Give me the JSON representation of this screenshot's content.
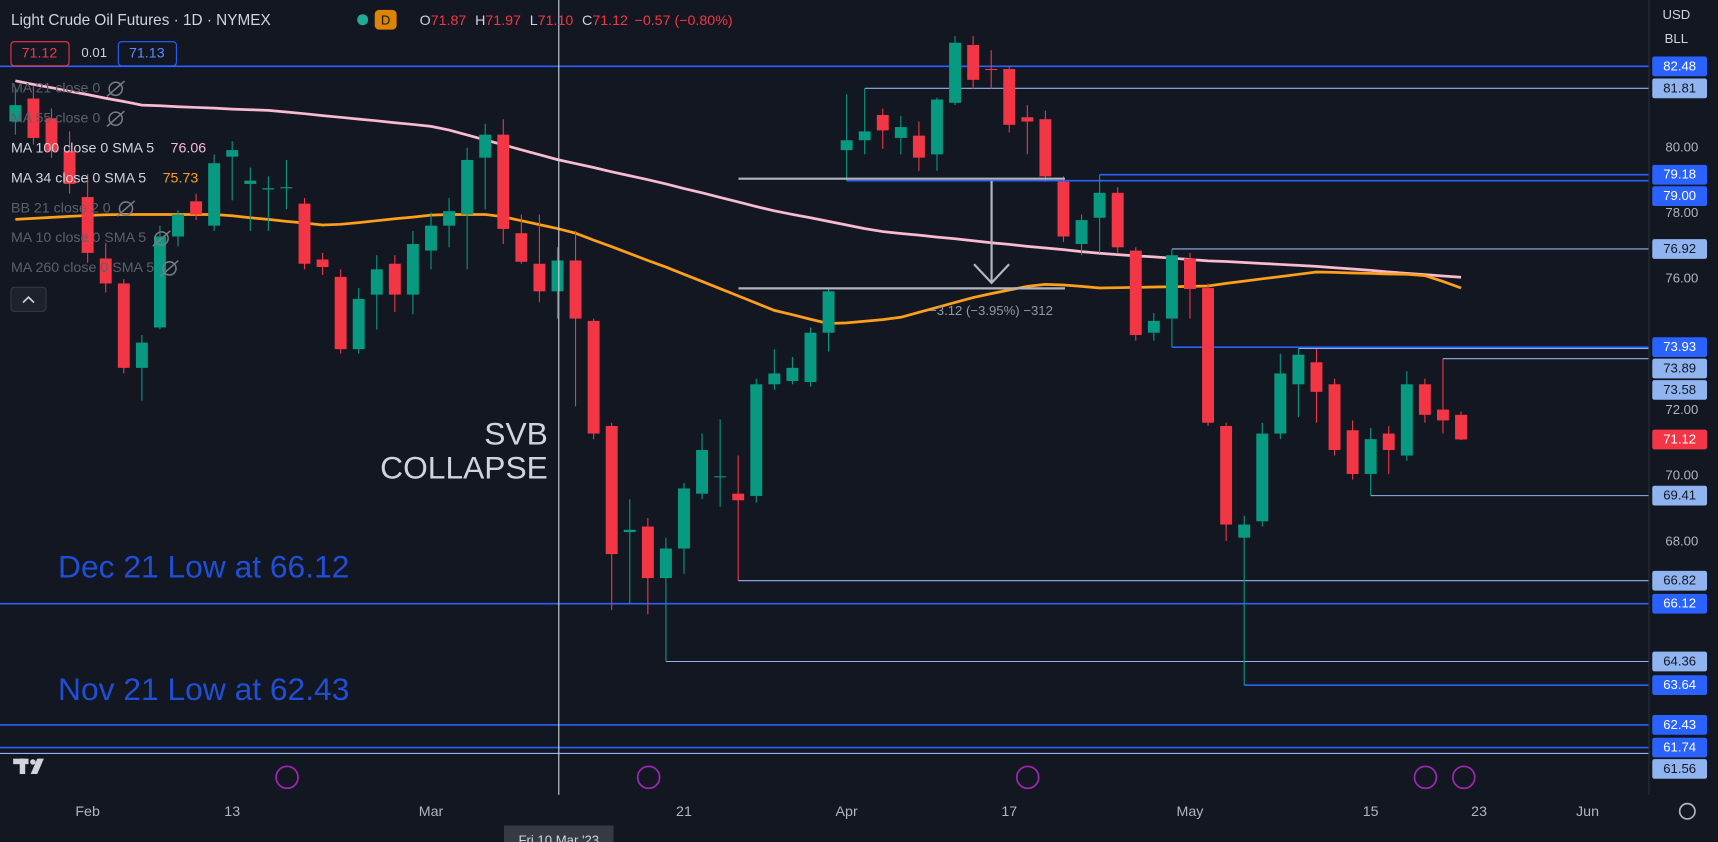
{
  "chart_data": {
    "type": "candlestick",
    "title": "Light Crude Oil Futures · 1D · NYMEX",
    "interval_badge": "D",
    "ohlc_header": [
      {
        "key": "O",
        "value": "71.87"
      },
      {
        "key": "H",
        "value": "71.97"
      },
      {
        "key": "L",
        "value": "71.10"
      },
      {
        "key": "C",
        "value": "71.12"
      }
    ],
    "change": "−0.57 (−0.80%)",
    "quote_boxes": [
      "71.12",
      "0.01",
      "71.13"
    ],
    "currency": "USD",
    "unit": "BLL",
    "up_color": "#089981",
    "down_color": "#f23645",
    "open": [
      80.8,
      81.5,
      80.9,
      79.9,
      78.5,
      76.63,
      75.87,
      73.3,
      74.53,
      77.3,
      78.37,
      77.63,
      79.73,
      78.9,
      78.73,
      78.77,
      78.3,
      76.6,
      76.07,
      73.87,
      75.53,
      76.47,
      75.53,
      76.87,
      77.63,
      77.97,
      79.7,
      80.4,
      77.4,
      76.47,
      75.63,
      76.57,
      74.73,
      71.53,
      68.3,
      68.47,
      66.9,
      67.8,
      69.47,
      69.97,
      69.47,
      69.4,
      72.8,
      72.9,
      72.87,
      74.37,
      79.93,
      80.23,
      81.0,
      80.3,
      80.37,
      79.8,
      81.37,
      83.13,
      82.4,
      82.4,
      80.93,
      80.87,
      78.97,
      77.07,
      77.87,
      78.63,
      76.87,
      74.37,
      74.8,
      76.63,
      75.73,
      71.53,
      68.13,
      68.63,
      71.3,
      72.8,
      73.47,
      72.8,
      71.4,
      70.07,
      71.3,
      70.63,
      72.8,
      72.03,
      71.87
    ],
    "high": [
      81.8,
      81.9,
      81.2,
      80.5,
      79.2,
      77.1,
      76.0,
      74.3,
      77.63,
      78.1,
      78.6,
      79.8,
      80.2,
      79.4,
      79.13,
      79.63,
      78.47,
      76.8,
      76.3,
      75.73,
      76.73,
      76.73,
      77.47,
      78.03,
      78.47,
      80.0,
      80.73,
      80.87,
      77.97,
      77.97,
      76.97,
      77.47,
      74.8,
      71.63,
      69.3,
      68.73,
      68.13,
      69.8,
      71.3,
      71.73,
      70.63,
      72.97,
      73.87,
      73.63,
      74.53,
      75.73,
      81.63,
      81.81,
      81.2,
      80.97,
      80.8,
      81.53,
      83.4,
      83.4,
      82.97,
      82.47,
      81.3,
      81.13,
      79.13,
      77.97,
      79.18,
      78.8,
      76.97,
      74.97,
      76.92,
      76.8,
      75.87,
      71.63,
      68.8,
      71.63,
      73.73,
      73.89,
      73.87,
      72.97,
      71.7,
      71.47,
      71.53,
      73.2,
      72.97,
      73.58,
      71.97
    ],
    "low": [
      80.4,
      80.1,
      79.7,
      78.6,
      76.5,
      75.6,
      73.13,
      72.3,
      74.47,
      77.0,
      77.8,
      77.47,
      78.4,
      77.47,
      77.47,
      78.13,
      76.3,
      76.13,
      73.73,
      73.73,
      74.47,
      75.0,
      74.93,
      76.3,
      76.97,
      76.3,
      78.13,
      77.07,
      76.47,
      75.3,
      74.8,
      72.13,
      71.13,
      65.93,
      66.13,
      65.8,
      64.36,
      67.03,
      69.3,
      69.07,
      66.82,
      69.2,
      72.63,
      72.8,
      72.73,
      73.8,
      79.0,
      79.8,
      79.97,
      79.8,
      79.3,
      79.3,
      81.3,
      81.8,
      81.8,
      80.47,
      79.8,
      78.97,
      77.13,
      76.73,
      76.8,
      76.8,
      74.13,
      74.13,
      73.93,
      74.8,
      71.53,
      68.03,
      63.64,
      68.47,
      71.13,
      71.8,
      71.63,
      70.63,
      69.9,
      69.41,
      70.07,
      70.47,
      71.63,
      71.3,
      71.1
    ],
    "close": [
      81.3,
      80.3,
      79.9,
      78.9,
      76.8,
      75.87,
      73.3,
      74.07,
      77.3,
      77.97,
      77.97,
      79.53,
      79.93,
      79.0,
      78.77,
      78.8,
      76.47,
      76.37,
      73.87,
      75.4,
      76.3,
      75.53,
      77.07,
      77.63,
      78.07,
      79.63,
      80.4,
      77.53,
      76.53,
      75.63,
      76.57,
      74.8,
      71.3,
      67.63,
      68.37,
      66.9,
      67.8,
      69.63,
      70.8,
      70.0,
      69.27,
      72.8,
      73.13,
      73.3,
      74.37,
      75.63,
      80.23,
      80.5,
      80.53,
      80.63,
      79.7,
      81.47,
      83.2,
      82.07,
      82.37,
      80.7,
      80.8,
      79.13,
      77.3,
      77.8,
      78.63,
      76.97,
      74.3,
      74.73,
      76.73,
      75.7,
      71.63,
      68.53,
      68.53,
      71.3,
      73.13,
      73.7,
      72.57,
      70.8,
      70.07,
      71.13,
      70.8,
      72.8,
      71.87,
      71.7,
      71.12
    ],
    "series": [
      {
        "name": "MA 100 close 0 SMA 5",
        "color": "#f8bbd0",
        "values": [
          82.04,
          81.93,
          81.83,
          81.72,
          81.62,
          81.51,
          81.41,
          81.3,
          81.28,
          81.25,
          81.23,
          81.21,
          81.18,
          81.16,
          81.14,
          81.09,
          81.04,
          80.98,
          80.93,
          80.87,
          80.82,
          80.76,
          80.71,
          80.65,
          80.54,
          80.39,
          80.24,
          80.09,
          79.94,
          79.79,
          79.64,
          79.52,
          79.4,
          79.27,
          79.15,
          79.03,
          78.9,
          78.76,
          78.63,
          78.49,
          78.35,
          78.21,
          78.08,
          77.97,
          77.87,
          77.76,
          77.65,
          77.54,
          77.45,
          77.39,
          77.34,
          77.28,
          77.23,
          77.17,
          77.11,
          77.06,
          77.0,
          76.95,
          76.9,
          76.84,
          76.79,
          76.75,
          76.71,
          76.68,
          76.64,
          76.6,
          76.56,
          76.54,
          76.51,
          76.48,
          76.45,
          76.42,
          76.39,
          76.35,
          76.31,
          76.27,
          76.22,
          76.18,
          76.14,
          76.1,
          76.06
        ]
      },
      {
        "name": "MA 34 close 0 SMA 5",
        "color": "#ff9f1a",
        "values": [
          77.82,
          77.85,
          77.88,
          77.91,
          77.94,
          77.96,
          77.97,
          77.97,
          77.97,
          77.97,
          77.97,
          77.97,
          77.93,
          77.87,
          77.82,
          77.76,
          77.71,
          77.65,
          77.67,
          77.72,
          77.78,
          77.84,
          77.89,
          77.95,
          77.97,
          77.97,
          77.97,
          77.9,
          77.78,
          77.66,
          77.54,
          77.4,
          77.19,
          76.99,
          76.78,
          76.57,
          76.37,
          76.15,
          75.93,
          75.71,
          75.49,
          75.27,
          75.05,
          74.92,
          74.78,
          74.65,
          74.67,
          74.72,
          74.77,
          74.84,
          74.99,
          75.14,
          75.29,
          75.44,
          75.56,
          75.67,
          75.78,
          75.84,
          75.82,
          75.78,
          75.73,
          75.74,
          75.75,
          75.76,
          75.77,
          75.78,
          75.79,
          75.87,
          75.94,
          76.01,
          76.08,
          76.15,
          76.22,
          76.21,
          76.19,
          76.18,
          76.16,
          76.15,
          76.11,
          75.93,
          75.73
        ]
      }
    ],
    "hidden_indicators": [
      "MA 21 close 0",
      "MA 55 close 0",
      "BB 21 close 2 0",
      "MA 10 close 0 SMA 5",
      "MA 260 close 0 SMA 5"
    ],
    "xlim": [
      -0.85,
      90.4
    ],
    "xticks": [
      {
        "value": 4,
        "label": "Feb"
      },
      {
        "value": 12,
        "label": "13"
      },
      {
        "value": 23,
        "label": "Mar"
      },
      {
        "value": 37,
        "label": "21"
      },
      {
        "value": 46,
        "label": "Apr"
      },
      {
        "value": 55,
        "label": "17"
      },
      {
        "value": 65,
        "label": "May"
      },
      {
        "value": 75,
        "label": "15"
      },
      {
        "value": 81,
        "label": "23"
      },
      {
        "value": 87,
        "label": "Jun"
      }
    ],
    "ylim": [
      60.3,
      84.5
    ],
    "yticks": [
      {
        "value": 80,
        "label": "80.00"
      },
      {
        "value": 78,
        "label": "78.00"
      },
      {
        "value": 76,
        "label": "76.00"
      },
      {
        "value": 72,
        "label": "72.00"
      },
      {
        "value": 70,
        "label": "70.00"
      },
      {
        "value": 68,
        "label": "68.00"
      }
    ],
    "levels": [
      {
        "value": 82.48,
        "color": "#2962ff"
      },
      {
        "value": 81.81,
        "color": "#90b4f0"
      },
      {
        "value": 79.18,
        "color": "#2962ff"
      },
      {
        "value": 79,
        "label": "79.00",
        "color": "#2962ff"
      },
      {
        "value": 76.92,
        "color": "#90b4f0"
      },
      {
        "value": 73.93,
        "color": "#2962ff"
      },
      {
        "value": 73.89,
        "color": "#90b4f0"
      },
      {
        "value": 73.58,
        "color": "#90b4f0"
      },
      {
        "value": 69.41,
        "color": "#90b4f0"
      },
      {
        "value": 66.82,
        "color": "#90b4f0"
      },
      {
        "value": 66.12,
        "color": "#2962ff"
      },
      {
        "value": 64.36,
        "color": "#90b4f0"
      },
      {
        "value": 63.64,
        "color": "#2962ff"
      },
      {
        "value": 62.43,
        "color": "#2962ff"
      },
      {
        "value": 61.74,
        "color": "#2962ff"
      },
      {
        "value": 61.56,
        "color": "#90b4f0"
      }
    ],
    "annotations": {
      "svb": [
        "SVB",
        "COLLAPSE"
      ],
      "dec_low": "Dec 21 Low at 66.12",
      "nov_low": "Nov 21 Low at 62.43",
      "measure": "−3.12 (−3.95%) −312"
    },
    "crosshair_label": "Fri 10 Mar '23"
  }
}
